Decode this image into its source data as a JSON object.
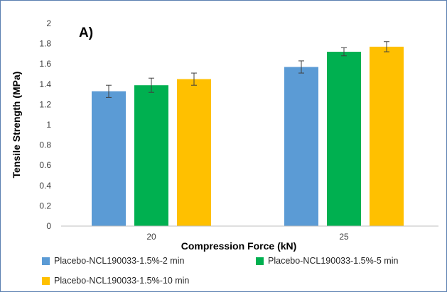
{
  "chart_data": {
    "type": "bar",
    "panel_label": "A)",
    "categories": [
      "20",
      "25"
    ],
    "series": [
      {
        "name": "Placebo-NCL190033-1.5%-2 min",
        "color": "#5b9bd5",
        "values": [
          1.33,
          1.57
        ],
        "errors": [
          0.06,
          0.06
        ]
      },
      {
        "name": "Placebo-NCL190033-1.5%-5 min",
        "color": "#00b050",
        "values": [
          1.39,
          1.72
        ],
        "errors": [
          0.07,
          0.04
        ]
      },
      {
        "name": "Placebo-NCL190033-1.5%-10 min",
        "color": "#ffc000",
        "values": [
          1.45,
          1.77
        ],
        "errors": [
          0.06,
          0.05
        ]
      }
    ],
    "xlabel": "Compression Force (kN)",
    "ylabel": "Tensile Strength (MPa)",
    "ylim": [
      0,
      2
    ],
    "yticks": [
      "0",
      "0.2",
      "0.4",
      "0.6",
      "0.8",
      "1",
      "1.2",
      "1.4",
      "1.6",
      "1.8",
      "2"
    ],
    "grid": false,
    "legend_position": "bottom"
  }
}
